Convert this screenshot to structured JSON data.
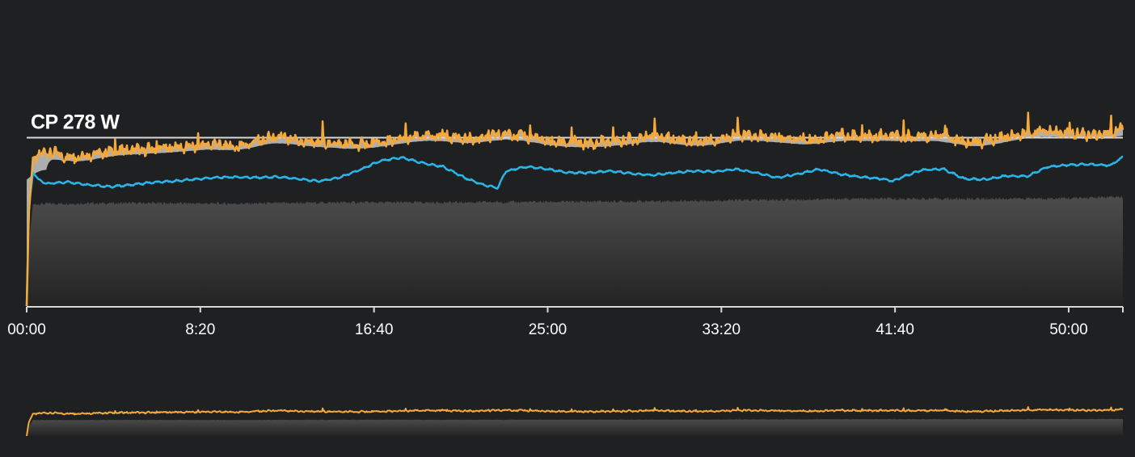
{
  "colors": {
    "background": "#1f2022",
    "power": "#f5a93a",
    "heart_rate": "#29b5e8",
    "cp_line": "#d8d8d8",
    "above_cp_fill": "#c8c8c8",
    "altitude_top": "#4c4c4c",
    "altitude_bottom": "#232323",
    "axis": "#d8d8d8"
  },
  "chart_data": {
    "type": "line",
    "cp_label": "CP 278 W",
    "cp_value": 278,
    "xlabel": "",
    "ylabel": "",
    "x_tick_labels": [
      "00:00",
      "8:20",
      "16:40",
      "25:00",
      "33:20",
      "41:40",
      "50:00"
    ],
    "x_tick_values_min": [
      0,
      8.333,
      16.667,
      25,
      33.333,
      41.667,
      50
    ],
    "x_range_min": [
      0,
      52.6
    ],
    "y_range_w": [
      0,
      400
    ],
    "grid": false,
    "legend": "none",
    "series": [
      {
        "key": "power",
        "x_min": [
          0,
          0.1,
          0.3,
          1,
          2,
          3,
          4,
          5,
          6,
          7,
          8,
          9,
          10,
          11,
          12,
          13,
          14,
          15,
          16,
          17,
          18,
          19,
          20,
          21,
          22,
          23,
          24,
          25,
          26,
          27,
          28,
          29,
          30,
          31,
          32,
          33,
          34,
          35,
          36,
          37,
          38,
          39,
          40,
          41,
          42,
          43,
          44,
          45,
          46,
          47,
          48,
          49,
          50,
          51,
          52,
          52.6
        ],
        "values": [
          0,
          150,
          245,
          255,
          245,
          250,
          255,
          258,
          258,
          262,
          263,
          268,
          262,
          272,
          278,
          272,
          270,
          268,
          266,
          270,
          275,
          280,
          282,
          275,
          278,
          285,
          280,
          272,
          270,
          268,
          272,
          275,
          282,
          276,
          272,
          274,
          283,
          280,
          278,
          276,
          275,
          283,
          278,
          280,
          279,
          280,
          282,
          270,
          272,
          280,
          285,
          290,
          286,
          282,
          285,
          292
        ]
      },
      {
        "key": "heart_rate",
        "x_min": [
          0,
          0.1,
          0.3,
          0.6,
          1,
          2,
          3,
          4,
          5,
          6,
          7,
          8,
          9,
          10,
          11,
          12,
          13,
          14,
          15,
          16,
          17,
          18,
          19,
          20,
          21,
          22,
          22.6,
          23,
          24,
          25,
          26,
          27,
          28,
          29,
          30,
          31,
          32,
          33,
          34,
          35,
          36,
          37,
          38,
          39,
          40,
          41,
          41.6,
          42,
          43,
          44,
          45,
          46,
          47,
          48,
          49,
          50,
          51,
          52,
          52.6
        ],
        "values": [
          0,
          160,
          220,
          208,
          202,
          205,
          200,
          197,
          200,
          204,
          206,
          209,
          212,
          213,
          212,
          213,
          210,
          206,
          212,
          225,
          240,
          245,
          236,
          230,
          212,
          199,
          195,
          223,
          230,
          226,
          220,
          220,
          223,
          219,
          216,
          220,
          223,
          222,
          226,
          220,
          212,
          218,
          226,
          218,
          213,
          210,
          206,
          213,
          225,
          226,
          210,
          209,
          215,
          214,
          230,
          233,
          234,
          232,
          246
        ]
      },
      {
        "key": "altitude",
        "x_min": [
          0,
          0.1,
          0.3,
          1,
          5,
          10,
          15,
          20,
          25,
          30,
          35,
          40,
          45,
          50,
          52.6
        ],
        "values": [
          0,
          100,
          168,
          169,
          170,
          169,
          171,
          171,
          172,
          173,
          175,
          177,
          177,
          178,
          180
        ]
      }
    ],
    "overview": {
      "type": "area",
      "series": [
        "power",
        "altitude"
      ]
    }
  }
}
